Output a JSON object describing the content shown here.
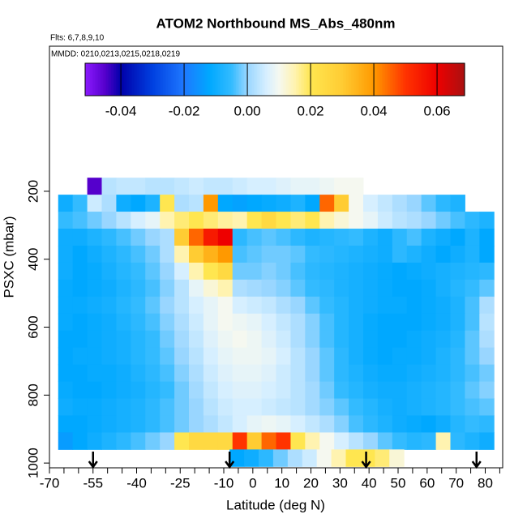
{
  "chart_data": {
    "type": "heatmap",
    "title": "ATOM2 Northbound MS_Abs_480nm",
    "subtitle": "Flts: 6,7,8,9,10",
    "annotation": "MMDD: 0210,0213,0215,0218,0219",
    "xlabel": "Latitude (deg N)",
    "ylabel": "PSXC (mbar)",
    "xlim": [
      -70,
      86
    ],
    "ylim": [
      1014,
      -227
    ],
    "xticks": [
      -70,
      -55,
      -40,
      -25,
      -10,
      0,
      10,
      20,
      30,
      40,
      50,
      60,
      70,
      80
    ],
    "xminor": [
      -65,
      -60,
      -50,
      -45,
      -35,
      -30,
      -20,
      -15,
      -5,
      5,
      15,
      25,
      35,
      45,
      55,
      65,
      75,
      85
    ],
    "yticks": [
      200,
      400,
      600,
      800,
      1000
    ],
    "clim": [
      -0.0513,
      0.0687
    ],
    "cticks": [
      -0.04,
      -0.02,
      {
        "value": 0,
        "label": "0.00"
      },
      0.02,
      0.04,
      0.06
    ],
    "colorscale": [
      [
        -0.0513,
        "#8c1aff"
      ],
      [
        -0.045,
        "#5500cc"
      ],
      [
        -0.04,
        "#0000aa"
      ],
      [
        -0.03,
        "#0040e0"
      ],
      [
        -0.02,
        "#1e78ff"
      ],
      [
        -0.012,
        "#00a8ff"
      ],
      [
        -0.005,
        "#33bbff"
      ],
      [
        0,
        "#99d6ff"
      ],
      [
        0.006,
        "#d6efff"
      ],
      [
        0.01,
        "#f5f8f0"
      ],
      [
        0.015,
        "#fff3b0"
      ],
      [
        0.02,
        "#ffe650"
      ],
      [
        0.03,
        "#ffcc33"
      ],
      [
        0.04,
        "#ff9900"
      ],
      [
        0.05,
        "#ff3300"
      ],
      [
        0.06,
        "#ee0000"
      ],
      [
        0.0687,
        "#aa1111"
      ]
    ],
    "step": 5,
    "arrows": [
      -55,
      -8,
      39,
      77
    ],
    "rows": [
      {
        "p": [
          160,
          210
        ],
        "lat0": -57,
        "values": [
          -0.045,
          0.003,
          0.004,
          0.004,
          0.003,
          0.003,
          0.004,
          0.005,
          0.004,
          0.004,
          0.005,
          0.006,
          0.006,
          0.007,
          0.008,
          0.008,
          0.009,
          0.01,
          0.01
        ]
      },
      {
        "p": [
          210,
          260
        ],
        "lat0": -67,
        "values": [
          -0.01,
          -0.005,
          0.005,
          0.002,
          -0.01,
          -0.012,
          -0.008,
          0.02,
          0.002,
          0.003,
          0.04,
          -0.012,
          -0.013,
          -0.012,
          -0.011,
          -0.01,
          -0.008,
          -0.012,
          0.045,
          0.03,
          0.01,
          0.006,
          0.004,
          0.002,
          0,
          -0.003,
          -0.006,
          -0.008
        ]
      },
      {
        "p": [
          260,
          310
        ],
        "lat0": -67,
        "values": [
          -0.005,
          -0.004,
          -0.002,
          0,
          0.003,
          0.006,
          0.008,
          0.015,
          0.018,
          0.02,
          0.018,
          0.016,
          0.015,
          0.02,
          0.025,
          0.02,
          0.018,
          0.02,
          0.015,
          0.012,
          0.01,
          0.008,
          0.005,
          0.003,
          0.002,
          0,
          -0.002,
          -0.004,
          -0.006,
          -0.008
        ]
      },
      {
        "p": [
          310,
          360
        ],
        "lat0": -67,
        "values": [
          -0.01,
          -0.01,
          -0.008,
          -0.006,
          -0.004,
          -0.002,
          0,
          0.002,
          0.03,
          0.045,
          0.055,
          0.06,
          -0.006,
          -0.004,
          -0.003,
          -0.004,
          -0.006,
          -0.008,
          -0.007,
          -0.006,
          -0.005,
          -0.008,
          -0.01,
          -0.006,
          -0.004,
          -0.008,
          -0.01,
          -0.012,
          -0.008,
          -0.012
        ]
      },
      {
        "p": [
          360,
          410
        ],
        "lat0": -67,
        "values": [
          -0.01,
          -0.012,
          -0.01,
          -0.008,
          -0.006,
          -0.004,
          -0.002,
          0.002,
          0.015,
          0.03,
          0.035,
          0.04,
          -0.004,
          -0.003,
          -0.002,
          -0.002,
          -0.003,
          -0.005,
          -0.006,
          -0.007,
          -0.008,
          -0.009,
          -0.01,
          -0.006,
          -0.008,
          -0.01,
          -0.012,
          -0.01,
          -0.008,
          -0.012
        ]
      },
      {
        "p": [
          410,
          460
        ],
        "lat0": -67,
        "values": [
          -0.01,
          -0.012,
          -0.011,
          -0.009,
          -0.007,
          -0.005,
          -0.003,
          0,
          0.006,
          0.015,
          0.02,
          0.025,
          -0.002,
          -0.002,
          -0.001,
          -0.002,
          -0.004,
          -0.006,
          -0.007,
          -0.008,
          -0.009,
          -0.01,
          -0.011,
          -0.012,
          -0.011,
          -0.01,
          -0.009,
          -0.008,
          -0.007,
          -0.006
        ]
      },
      {
        "p": [
          460,
          510
        ],
        "lat0": -67,
        "values": [
          -0.011,
          -0.012,
          -0.011,
          -0.01,
          -0.008,
          -0.006,
          -0.004,
          -0.001,
          0.003,
          0.008,
          0.012,
          0.015,
          0.002,
          0.001,
          0,
          -0.001,
          -0.003,
          -0.005,
          -0.006,
          -0.008,
          -0.009,
          -0.01,
          -0.011,
          -0.012,
          -0.012,
          -0.011,
          -0.009,
          -0.007,
          -0.005,
          -0.003
        ]
      },
      {
        "p": [
          510,
          560
        ],
        "lat0": -67,
        "values": [
          -0.011,
          -0.011,
          -0.01,
          -0.009,
          -0.007,
          -0.005,
          -0.003,
          0,
          0.003,
          0.006,
          0.008,
          0.01,
          0.006,
          0.005,
          0.004,
          0.002,
          0,
          -0.003,
          -0.005,
          -0.007,
          -0.009,
          -0.01,
          -0.011,
          -0.011,
          -0.012,
          -0.011,
          -0.01,
          -0.008,
          -0.004,
          0.002
        ]
      },
      {
        "p": [
          560,
          610
        ],
        "lat0": -67,
        "values": [
          -0.011,
          -0.012,
          -0.011,
          -0.01,
          -0.008,
          -0.006,
          -0.004,
          -0.001,
          0.002,
          0.005,
          0.008,
          0.01,
          0.009,
          0.008,
          0.006,
          0.004,
          0.002,
          -0.001,
          -0.004,
          -0.007,
          -0.009,
          -0.011,
          -0.012,
          -0.012,
          -0.012,
          -0.011,
          -0.01,
          -0.008,
          -0.004,
          0.003
        ]
      },
      {
        "p": [
          610,
          660
        ],
        "lat0": -67,
        "values": [
          -0.012,
          -0.012,
          -0.011,
          -0.01,
          -0.009,
          -0.007,
          -0.005,
          -0.002,
          0.001,
          0.004,
          0.007,
          0.009,
          0.01,
          0.009,
          0.007,
          0.005,
          0.002,
          -0.001,
          -0.004,
          -0.007,
          -0.009,
          -0.011,
          -0.012,
          -0.012,
          -0.011,
          -0.01,
          -0.009,
          -0.007,
          -0.003,
          0.002
        ]
      },
      {
        "p": [
          660,
          710
        ],
        "lat0": -67,
        "values": [
          -0.012,
          -0.011,
          -0.011,
          -0.01,
          -0.009,
          -0.007,
          -0.005,
          -0.003,
          0,
          0.003,
          0.006,
          0.008,
          0.009,
          0.009,
          0.008,
          0.006,
          0.003,
          0,
          -0.003,
          -0.006,
          -0.009,
          -0.011,
          -0.012,
          -0.011,
          -0.011,
          -0.01,
          -0.008,
          -0.006,
          -0.003,
          0
        ]
      },
      {
        "p": [
          710,
          760
        ],
        "lat0": -67,
        "values": [
          -0.012,
          -0.012,
          -0.011,
          -0.011,
          -0.01,
          -0.008,
          -0.006,
          -0.004,
          -0.001,
          0.002,
          0.005,
          0.007,
          0.008,
          0.008,
          0.007,
          0.005,
          0.003,
          0,
          -0.003,
          -0.006,
          -0.008,
          -0.01,
          -0.011,
          -0.011,
          -0.01,
          -0.009,
          -0.008,
          -0.006,
          -0.004,
          -0.002
        ]
      },
      {
        "p": [
          760,
          810
        ],
        "lat0": -67,
        "values": [
          -0.011,
          -0.012,
          -0.012,
          -0.011,
          -0.01,
          -0.009,
          -0.007,
          -0.005,
          -0.002,
          0.001,
          0.004,
          0.006,
          0.007,
          0.007,
          0.006,
          0.005,
          0.003,
          0.001,
          -0.002,
          -0.005,
          -0.007,
          -0.009,
          -0.01,
          -0.01,
          -0.009,
          -0.008,
          -0.007,
          -0.005,
          -0.003,
          -0.001
        ]
      },
      {
        "p": [
          810,
          860
        ],
        "lat0": -67,
        "values": [
          -0.01,
          -0.011,
          -0.011,
          -0.01,
          -0.009,
          -0.008,
          -0.006,
          -0.004,
          -0.002,
          0,
          0.003,
          0.005,
          0.006,
          0.006,
          0.005,
          0.004,
          0.003,
          0.001,
          -0.001,
          -0.003,
          -0.005,
          -0.007,
          -0.009,
          -0.01,
          -0.009,
          -0.008,
          -0.007,
          -0.005,
          -0.004,
          -0.003
        ]
      },
      {
        "p": [
          860,
          910
        ],
        "lat0": -67,
        "values": [
          -0.012,
          -0.012,
          -0.011,
          -0.01,
          -0.009,
          -0.008,
          -0.006,
          -0.004,
          -0.002,
          0,
          0.002,
          0.004,
          0.006,
          0.008,
          0.009,
          0.008,
          0.006,
          0.004,
          0.002,
          -0.001,
          -0.004,
          -0.006,
          -0.008,
          -0.01,
          -0.011,
          -0.012,
          -0.01,
          -0.007,
          -0.005,
          -0.006
        ]
      },
      {
        "p": [
          910,
          960
        ],
        "lat0": -67,
        "values": [
          -0.014,
          -0.012,
          -0.01,
          -0.008,
          -0.006,
          -0.004,
          -0.002,
          0,
          0.02,
          0.025,
          0.025,
          0.025,
          0.05,
          0.03,
          0.045,
          0.05,
          0.02,
          0.015,
          0.01,
          0.006,
          0.003,
          0,
          -0.003,
          -0.005,
          -0.007,
          -0.006,
          0.015,
          -0.006,
          -0.008,
          -0.01
        ]
      },
      {
        "p": [
          960,
          1010
        ],
        "lat0": -8,
        "values": [
          -0.012,
          -0.01,
          -0.006,
          -0.002,
          0.002,
          0.005,
          0.01,
          0.015,
          0.02,
          0.02,
          0.018,
          0.012
        ]
      }
    ]
  }
}
